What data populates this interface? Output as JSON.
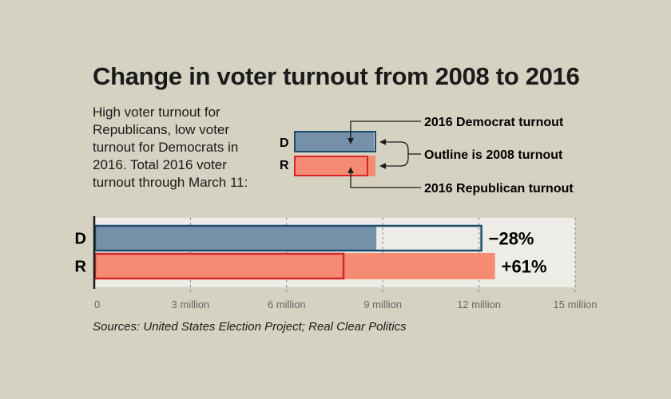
{
  "title": "Change in voter turnout from 2008 to 2016",
  "subtitle": "High voter turnout for Republicans, low voter turnout for Democrats in 2016. Total 2016 voter turnout through March 11:",
  "legend": {
    "label_2016_dem": "2016 Democrat turnout",
    "label_outline": "Outline is 2008 turnout",
    "label_2016_rep": "2016 Republican turnout",
    "row_d": "D",
    "row_r": "R"
  },
  "sources": "Sources: United States Election Project; Real Clear Politics",
  "colors": {
    "dem_fill": "#7790a9",
    "dem_outline": "#1d4e6e",
    "rep_fill": "#f58b73",
    "rep_outline": "#d7242b",
    "plot_bg": "#edece6",
    "background": "#d5d2c2"
  },
  "chart_data": {
    "type": "bar",
    "orientation": "horizontal",
    "categories": [
      "D",
      "R"
    ],
    "series": [
      {
        "name": "2016 turnout",
        "values": [
          8.8,
          12.5
        ]
      },
      {
        "name": "2008 turnout",
        "values": [
          12.1,
          7.8
        ]
      }
    ],
    "change_labels": [
      "−28%",
      "+61%"
    ],
    "xlim": [
      0,
      15
    ],
    "xticks": [
      0,
      3,
      6,
      9,
      12,
      15
    ],
    "xtick_labels": [
      "0",
      "3 million",
      "6 million",
      "9 million",
      "12 million",
      "15 million"
    ],
    "grid": true
  }
}
